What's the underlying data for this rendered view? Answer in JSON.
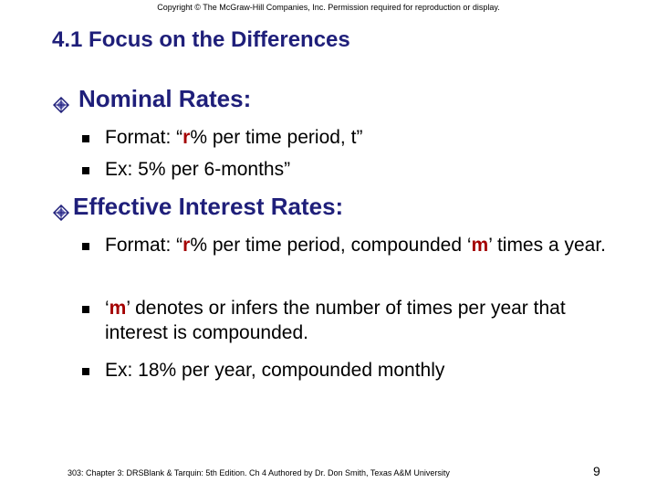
{
  "copyright": "Copyright © The McGraw-Hill Companies, Inc. Permission required for reproduction or display.",
  "title": "4.1 Focus on the Differences",
  "sections": {
    "nominal": {
      "heading": "Nominal Rates:",
      "bullets": {
        "b0": {
          "pre": "Format: “",
          "hl": "r",
          "post": "% per time period, t”"
        },
        "b1": {
          "text": "Ex: 5% per 6-months”"
        }
      }
    },
    "effective": {
      "heading": "Effective Interest Rates:",
      "bullets": {
        "b0": {
          "pre": "Format: “",
          "hl1": "r",
          "mid": "% per time period, compounded ‘",
          "hl2": "m",
          "post": "’ times a year."
        },
        "b1": {
          "pre": "‘",
          "hl": "m",
          "post": "’ denotes or infers the number of times per year that interest is compounded."
        },
        "b2": {
          "text": "Ex: 18% per year, compounded monthly"
        }
      }
    }
  },
  "footer": "303: Chapter 3: DRSBlank & Tarquin: 5th Edition. Ch 4 Authored by Dr. Don Smith, Texas A&M University",
  "page_number": "9",
  "colors": {
    "title": "#1f1f7a",
    "highlight": "#a40000",
    "diamond_fill": "#6b6bb8",
    "diamond_dark": "#1f1f7a"
  },
  "icons": {
    "heading_bullet": "diamond-icon",
    "list_bullet": "square-bullet-icon"
  }
}
